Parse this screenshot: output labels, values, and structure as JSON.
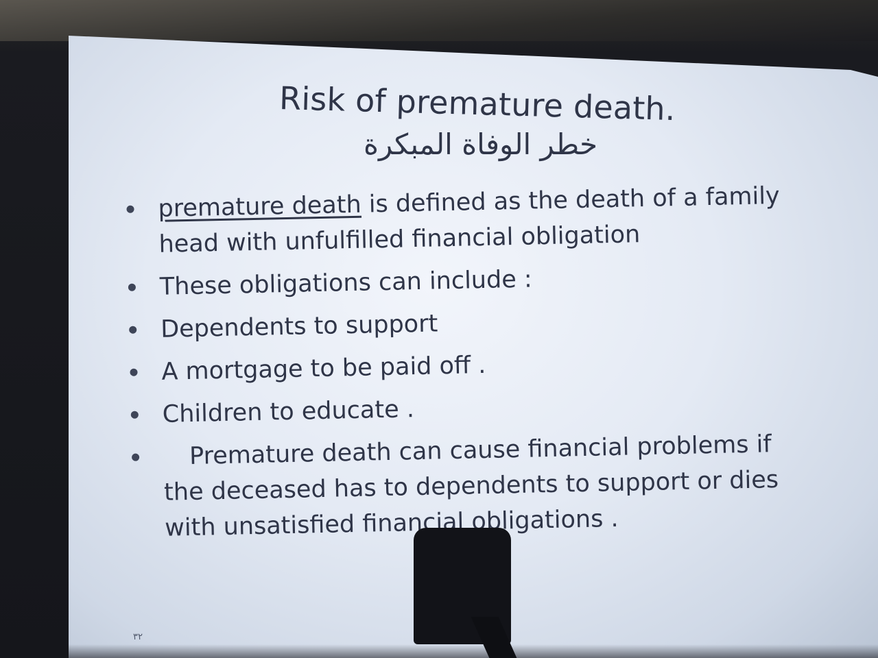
{
  "slide": {
    "title": "Risk of premature death.",
    "subtitle_ar": "خطر الوفاة المبكرة",
    "bullets": [
      {
        "term": "premature death",
        "text": " is defined as the death of a family head with unfulfilled financial obligation"
      },
      {
        "text": "These obligations can include :"
      },
      {
        "text": "Dependents to support"
      },
      {
        "text": "A mortgage to be paid off ."
      },
      {
        "text": "Children to educate ."
      },
      {
        "text": "Premature death can cause financial problems if the deceased has to dependents to support or dies with unsatisfied financial obligations ."
      }
    ],
    "page_number": "٣٢"
  },
  "colors": {
    "slide_text": "#2f3548",
    "slide_background": "#e4eaf4",
    "room": "#17181d"
  }
}
